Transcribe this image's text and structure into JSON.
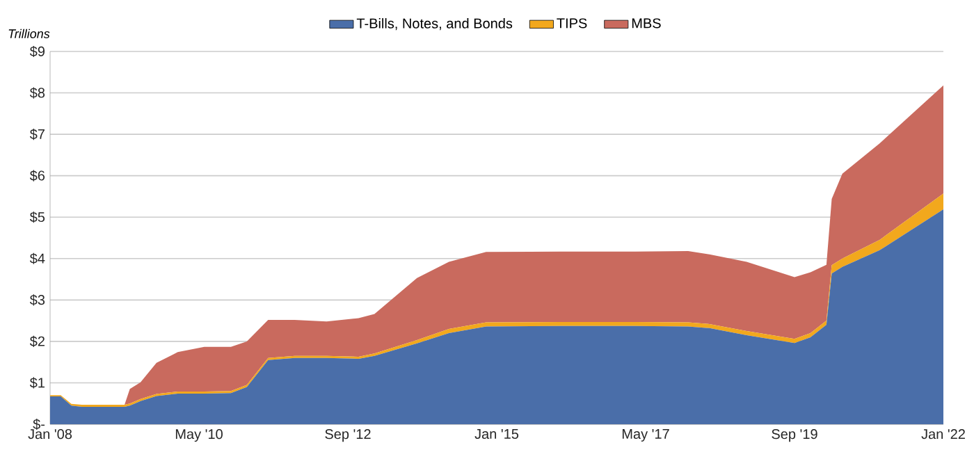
{
  "chart_data": {
    "type": "area",
    "stacked": true,
    "ylabel": "Trillions",
    "legend": "top",
    "grid": "y",
    "x": [
      "2008-01",
      "2008-03",
      "2008-05",
      "2008-07",
      "2009-03",
      "2009-04",
      "2009-06",
      "2009-09",
      "2010-01",
      "2010-06",
      "2010-11",
      "2011-02",
      "2011-06",
      "2011-11",
      "2012-05",
      "2012-11",
      "2013-02",
      "2013-10",
      "2014-04",
      "2014-11",
      "2016-01",
      "2017-03",
      "2018-01",
      "2018-05",
      "2018-12",
      "2019-09",
      "2019-12",
      "2020-03",
      "2020-04",
      "2020-06",
      "2021-01",
      "2022-01"
    ],
    "series": [
      {
        "name": "T-Bills, Notes, and Bonds",
        "color": "#4a6ea9",
        "values": [
          0.67,
          0.67,
          0.45,
          0.42,
          0.42,
          0.45,
          0.56,
          0.68,
          0.74,
          0.74,
          0.75,
          0.9,
          1.55,
          1.6,
          1.6,
          1.58,
          1.65,
          1.95,
          2.2,
          2.36,
          2.37,
          2.37,
          2.36,
          2.32,
          2.15,
          1.96,
          2.1,
          2.4,
          3.64,
          3.8,
          4.2,
          5.19
        ]
      },
      {
        "name": "TIPS",
        "color": "#f2a81d",
        "values": [
          0.03,
          0.03,
          0.04,
          0.05,
          0.05,
          0.05,
          0.05,
          0.05,
          0.05,
          0.05,
          0.05,
          0.05,
          0.05,
          0.05,
          0.05,
          0.05,
          0.06,
          0.08,
          0.1,
          0.1,
          0.1,
          0.1,
          0.1,
          0.1,
          0.1,
          0.1,
          0.1,
          0.1,
          0.2,
          0.2,
          0.25,
          0.38
        ]
      },
      {
        "name": "MBS",
        "color": "#c96a5e",
        "values": [
          0,
          0,
          0,
          0,
          0,
          0.35,
          0.4,
          0.75,
          0.95,
          1.08,
          1.07,
          1.05,
          0.92,
          0.87,
          0.83,
          0.93,
          0.95,
          1.5,
          1.62,
          1.7,
          1.7,
          1.7,
          1.72,
          1.68,
          1.67,
          1.49,
          1.47,
          1.35,
          1.6,
          2.05,
          2.33,
          2.61
        ]
      }
    ],
    "xlim": [
      "2008-01",
      "2022-01"
    ],
    "xticks": [
      {
        "value": "2008-01",
        "label": "Jan '08"
      },
      {
        "value": "2010-05",
        "label": "May '10"
      },
      {
        "value": "2012-09",
        "label": "Sep '12"
      },
      {
        "value": "2015-01",
        "label": "Jan '15"
      },
      {
        "value": "2017-05",
        "label": "May '17"
      },
      {
        "value": "2019-09",
        "label": "Sep '19"
      },
      {
        "value": "2022-01",
        "label": "Jan '22"
      }
    ],
    "ylim": [
      0,
      9
    ],
    "yticks": [
      {
        "value": 0,
        "label": "$-"
      },
      {
        "value": 1,
        "label": "$1"
      },
      {
        "value": 2,
        "label": "$2"
      },
      {
        "value": 3,
        "label": "$3"
      },
      {
        "value": 4,
        "label": "$4"
      },
      {
        "value": 5,
        "label": "$5"
      },
      {
        "value": 6,
        "label": "$6"
      },
      {
        "value": 7,
        "label": "$7"
      },
      {
        "value": 8,
        "label": "$8"
      },
      {
        "value": 9,
        "label": "$9"
      }
    ]
  }
}
